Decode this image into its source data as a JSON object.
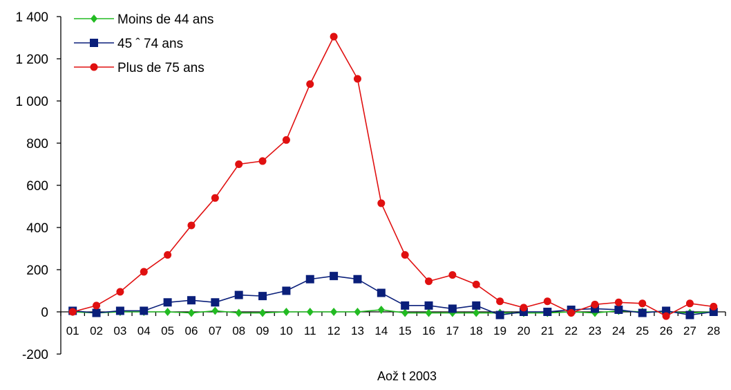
{
  "chart_data": {
    "type": "line",
    "title": "",
    "xlabel": "Aož t 2003",
    "ylabel": "",
    "ylim": [
      -200,
      1400
    ],
    "yticks": [
      -200,
      0,
      200,
      400,
      600,
      800,
      1000,
      1200,
      1400
    ],
    "ytick_labels": [
      "-200",
      "0",
      "200",
      "400",
      "600",
      "800",
      "1 000",
      "1 200",
      "1 400"
    ],
    "categories": [
      "01",
      "02",
      "03",
      "04",
      "05",
      "06",
      "07",
      "08",
      "09",
      "10",
      "11",
      "12",
      "13",
      "14",
      "15",
      "16",
      "17",
      "18",
      "19",
      "20",
      "21",
      "22",
      "23",
      "24",
      "25",
      "26",
      "27",
      "28"
    ],
    "grid": false,
    "legend_position": "top-left",
    "series": [
      {
        "name": "Moins de 44 ans",
        "color": "#22bb22",
        "marker": "diamond",
        "values": [
          0,
          -5,
          0,
          0,
          0,
          -5,
          5,
          -5,
          -5,
          0,
          0,
          0,
          0,
          10,
          -5,
          -5,
          -5,
          -5,
          -5,
          -5,
          -5,
          0,
          -5,
          5,
          0,
          0,
          -5,
          0
        ]
      },
      {
        "name": "45 ˆ 74 ans",
        "color": "#0a1f7a",
        "marker": "square",
        "values": [
          5,
          -5,
          5,
          5,
          45,
          55,
          45,
          80,
          75,
          100,
          155,
          170,
          155,
          90,
          30,
          30,
          15,
          30,
          -15,
          0,
          0,
          10,
          15,
          10,
          -5,
          5,
          -15,
          0
        ]
      },
      {
        "name": "Plus de 75 ans",
        "color": "#e01010",
        "marker": "circle",
        "values": [
          0,
          30,
          95,
          190,
          270,
          410,
          540,
          700,
          715,
          815,
          1080,
          1305,
          1105,
          515,
          270,
          145,
          175,
          130,
          50,
          20,
          50,
          -5,
          35,
          45,
          40,
          -20,
          40,
          25
        ]
      }
    ]
  }
}
